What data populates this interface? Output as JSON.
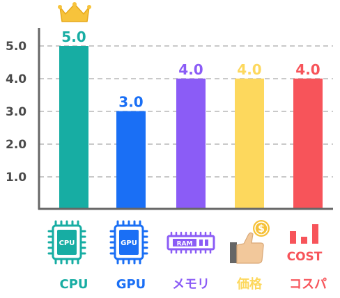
{
  "chart_data": {
    "type": "bar",
    "categories": [
      "CPU",
      "GPU",
      "メモリ",
      "価格",
      "コスパ"
    ],
    "values": [
      5.0,
      3.0,
      4.0,
      4.0,
      4.0
    ],
    "value_labels": [
      "5.0",
      "3.0",
      "4.0",
      "4.0",
      "4.0"
    ],
    "colors": [
      "#17ada3",
      "#1a6ff5",
      "#8b5cf6",
      "#fdd85d",
      "#f7545a"
    ],
    "ylim": [
      0,
      5
    ],
    "yticks": [
      "1.0",
      "2.0",
      "3.0",
      "4.0",
      "5.0"
    ],
    "grid": true,
    "title": "",
    "xlabel": "",
    "ylabel": ""
  },
  "icons": {
    "top_badge": "crown-icon",
    "cpu": {
      "name": "cpu-chip-icon",
      "text": "CPU"
    },
    "gpu": {
      "name": "gpu-chip-icon",
      "text": "GPU"
    },
    "ram": {
      "name": "ram-stick-icon",
      "text": "RAM"
    },
    "price": {
      "name": "thumbs-up-coin-icon",
      "text": "$"
    },
    "cost": {
      "name": "cost-bars-icon",
      "text": "COST"
    }
  }
}
